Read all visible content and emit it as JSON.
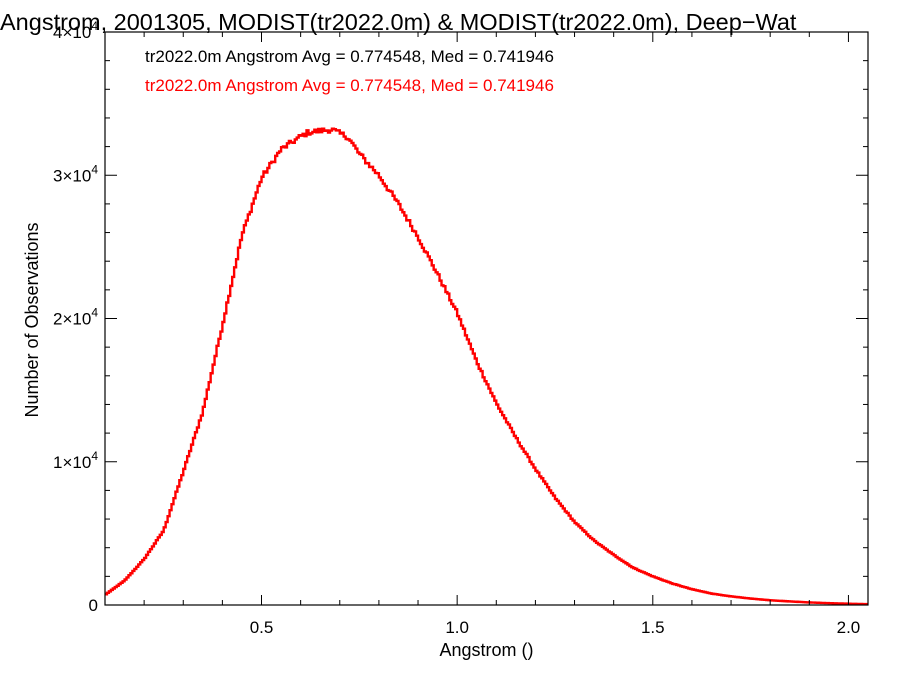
{
  "chart_data": {
    "type": "line",
    "title": "Angstrom, 2001305, MODIST(tr2022.0m) & MODIST(tr2022.0m), Deep−Wat",
    "xlabel": "Angstrom ()",
    "ylabel": "Number of Observations",
    "xlim": [
      0.1,
      2.05
    ],
    "ylim": [
      0,
      40000
    ],
    "x_ticks": [
      {
        "value": 0.5,
        "label": "0.5"
      },
      {
        "value": 1.0,
        "label": "1.0"
      },
      {
        "value": 1.5,
        "label": "1.5"
      },
      {
        "value": 2.0,
        "label": "2.0"
      }
    ],
    "y_ticks": [
      {
        "value": 0,
        "label": "0",
        "mant": "",
        "exp": ""
      },
      {
        "value": 10000,
        "label": "",
        "mant": "1×10",
        "exp": "4"
      },
      {
        "value": 20000,
        "label": "",
        "mant": "2×10",
        "exp": "4"
      },
      {
        "value": 30000,
        "label": "",
        "mant": "3×10",
        "exp": "4"
      },
      {
        "value": 40000,
        "label": "",
        "mant": "4×10",
        "exp": "4"
      }
    ],
    "annotations": [
      {
        "text": "tr2022.0m Angstrom Avg = 0.774548, Med = 0.741946",
        "color": "#000000"
      },
      {
        "text": "tr2022.0m Angstrom Avg = 0.774548, Med = 0.741946",
        "color": "#ff0000"
      }
    ],
    "series": [
      {
        "color": "#ff0000",
        "step": true,
        "x": [
          0.1,
          0.15,
          0.2,
          0.25,
          0.3,
          0.35,
          0.4,
          0.45,
          0.5,
          0.55,
          0.6,
          0.62,
          0.65,
          0.68,
          0.7,
          0.72,
          0.75,
          0.8,
          0.85,
          0.9,
          0.95,
          1.0,
          1.05,
          1.1,
          1.15,
          1.2,
          1.25,
          1.3,
          1.35,
          1.4,
          1.45,
          1.5,
          1.55,
          1.6,
          1.65,
          1.7,
          1.75,
          1.8,
          1.85,
          1.9,
          1.95,
          2.0,
          2.05
        ],
        "y": [
          700,
          1700,
          3200,
          5200,
          9300,
          13500,
          19500,
          25800,
          29800,
          31800,
          32700,
          33000,
          33100,
          33200,
          32900,
          32700,
          31500,
          30000,
          28000,
          25700,
          23100,
          20400,
          17000,
          14100,
          11700,
          9500,
          7500,
          5800,
          4500,
          3500,
          2600,
          2000,
          1500,
          1100,
          800,
          600,
          450,
          330,
          250,
          180,
          130,
          90,
          60
        ]
      }
    ],
    "grid": false,
    "legend": "none"
  }
}
